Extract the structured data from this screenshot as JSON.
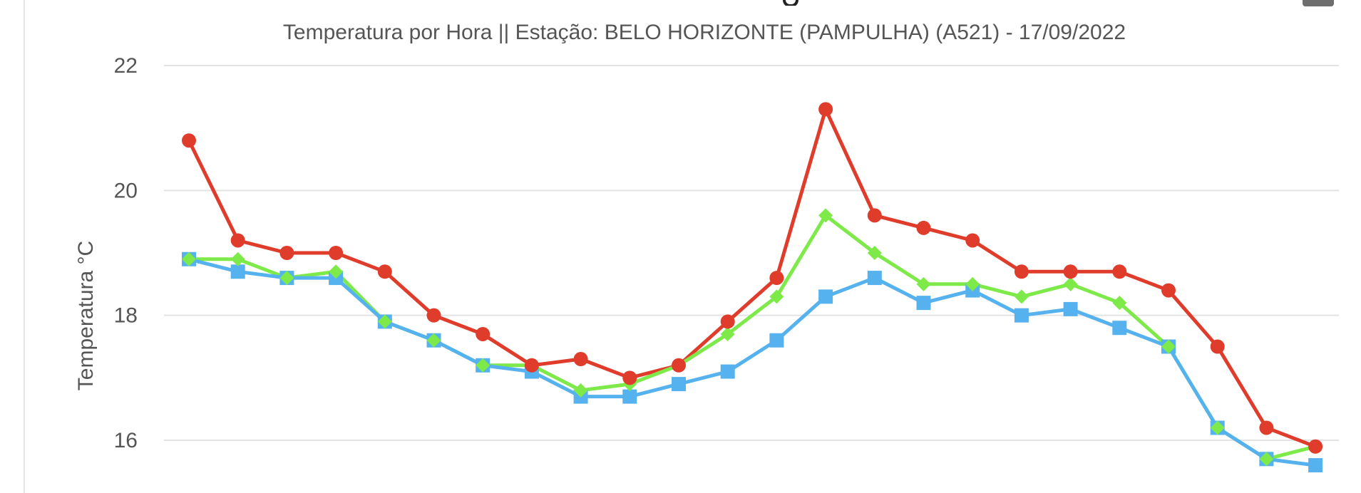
{
  "chart_data": {
    "type": "line",
    "subtitle": "Temperatura por Hora || Estação: BELO HORIZONTE (PAMPULHA) (A521) - 17/09/2022",
    "ylabel": "Temperatura °C",
    "ylim": [
      15.5,
      22.2
    ],
    "yticks": [
      16,
      18,
      20,
      22
    ],
    "grid": true,
    "x": [
      0,
      1,
      2,
      3,
      4,
      5,
      6,
      7,
      8,
      9,
      10,
      11,
      12,
      13,
      14,
      15,
      16,
      17,
      18,
      19,
      20,
      21,
      22,
      23,
      24
    ],
    "series": [
      {
        "color": "#e03c2b",
        "marker": "circle",
        "values": [
          20.8,
          19.2,
          19.0,
          19.0,
          18.7,
          18.0,
          17.7,
          17.2,
          17.3,
          17.0,
          17.2,
          17.9,
          18.6,
          21.3,
          19.6,
          19.4,
          19.2,
          18.7,
          18.7,
          18.7,
          18.4,
          17.5,
          16.2,
          15.9,
          null
        ]
      },
      {
        "color": "#7dea4a",
        "marker": "diamond",
        "values": [
          18.9,
          18.9,
          18.6,
          18.7,
          17.9,
          17.6,
          17.2,
          17.2,
          16.8,
          16.9,
          17.2,
          17.7,
          18.3,
          19.6,
          19.0,
          18.5,
          18.5,
          18.3,
          18.5,
          18.2,
          17.5,
          16.2,
          15.7,
          15.9,
          null
        ]
      },
      {
        "color": "#55b2ee",
        "marker": "square",
        "values": [
          18.9,
          18.7,
          18.6,
          18.6,
          17.9,
          17.6,
          17.2,
          17.1,
          16.7,
          16.7,
          16.9,
          17.1,
          17.6,
          18.3,
          18.6,
          18.2,
          18.4,
          18.0,
          18.1,
          17.8,
          17.5,
          16.2,
          15.7,
          15.6,
          null
        ]
      }
    ]
  }
}
